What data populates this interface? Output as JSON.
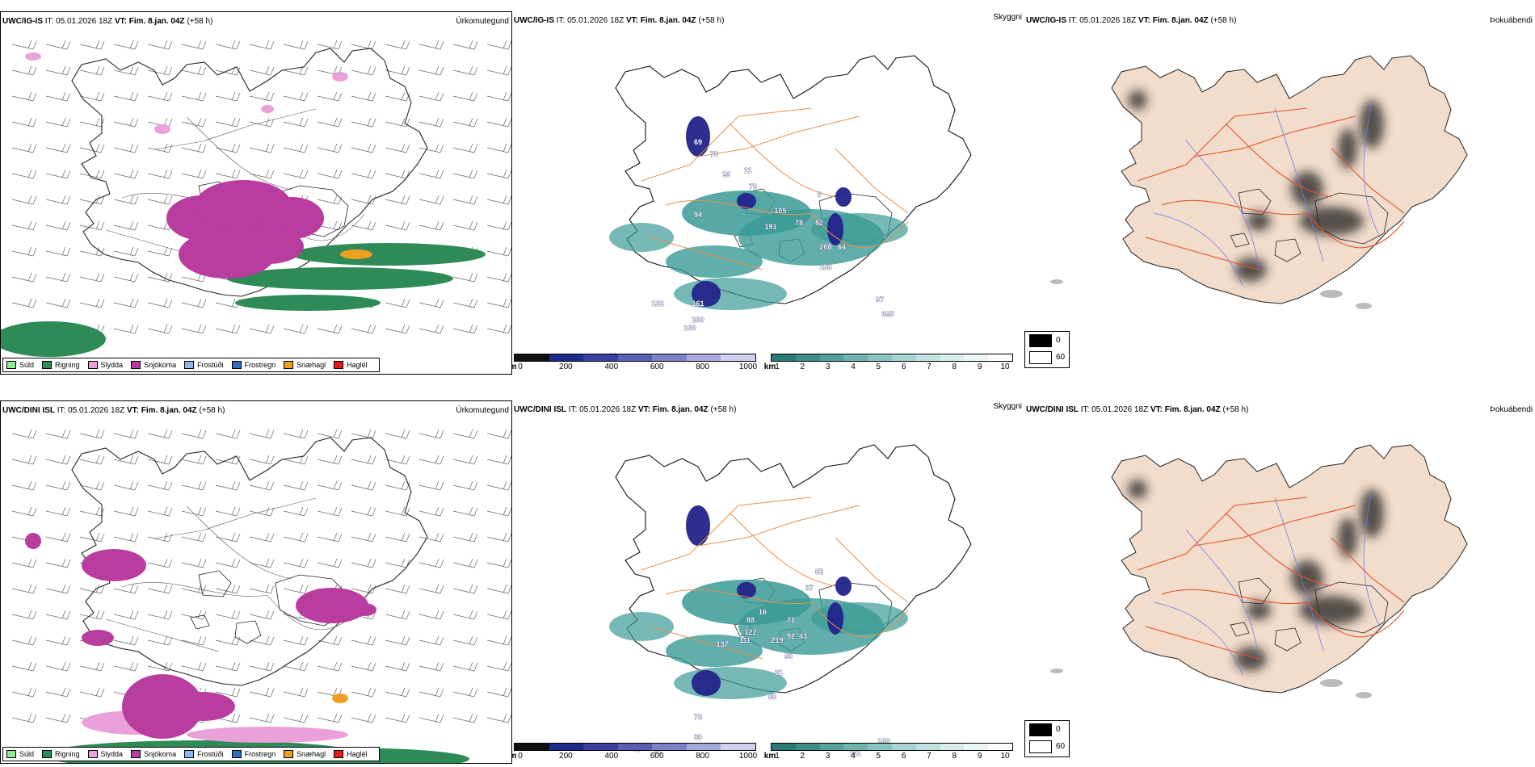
{
  "colors": {
    "snow": "#b83d9e",
    "sleet": "#eaa0d8",
    "rain": "#2e8b57",
    "drizzle": "#90ee90",
    "freezing_drizzle": "#8db8ee",
    "freezing_rain": "#2e6fc4",
    "snow_grains": "#f0a020",
    "hail": "#e8191a",
    "cloud_teal": "#3a9a96",
    "cloud_blue": "#23238a",
    "road": "#e8914a",
    "fog_bg": "#f2dccb",
    "fog_road": "#e5532b",
    "fog_river": "#6c7ef0"
  },
  "rows": [
    {
      "model": "UWC/IG-IS",
      "it_label": "IT: 05.01.2026 18Z",
      "vt_label": "VT: Fim. 8.jan. 04Z",
      "lead": "(+58 h)",
      "precip_title": "Úrkomutegund",
      "cloud_title": "Skyggni",
      "fog_title": "Þokuábendi",
      "cloud_labels": [
        "69",
        "70",
        "23",
        "11",
        "78",
        "94",
        "105",
        "191",
        "78",
        "82",
        "208",
        "64",
        "158",
        "161",
        "200",
        "132",
        "100",
        "97",
        "395",
        "20",
        "5"
      ]
    },
    {
      "model": "UWC/DINI ISL",
      "it_label": "IT: 05.01.2026 18Z",
      "vt_label": "VT: Fim. 8.jan. 04Z",
      "lead": "(+58 h)",
      "precip_title": "Úrkomutegund",
      "cloud_title": "Skyggni",
      "fog_title": "Þokuábendi",
      "cloud_labels": [
        "82",
        "37",
        "88",
        "16",
        "122",
        "137",
        "111",
        "219",
        "71",
        "43",
        "92",
        "93",
        "31",
        "50",
        "73",
        "30",
        "67",
        "31",
        "111",
        "180"
      ]
    }
  ],
  "precip_legend": [
    "Súld",
    "Rigning",
    "Slydda",
    "Snjókoma",
    "Frostúði",
    "Frostregn",
    "Snæhagl",
    "Haglél"
  ],
  "height_bar": {
    "unit": "m",
    "ticks": [
      "0",
      "200",
      "400",
      "600",
      "800",
      "1000"
    ]
  },
  "vis_bar": {
    "unit": "km",
    "ticks": [
      "1",
      "2",
      "3",
      "4",
      "5",
      "6",
      "7",
      "8",
      "9",
      "10"
    ]
  },
  "fog_legend": [
    "0",
    "60"
  ]
}
